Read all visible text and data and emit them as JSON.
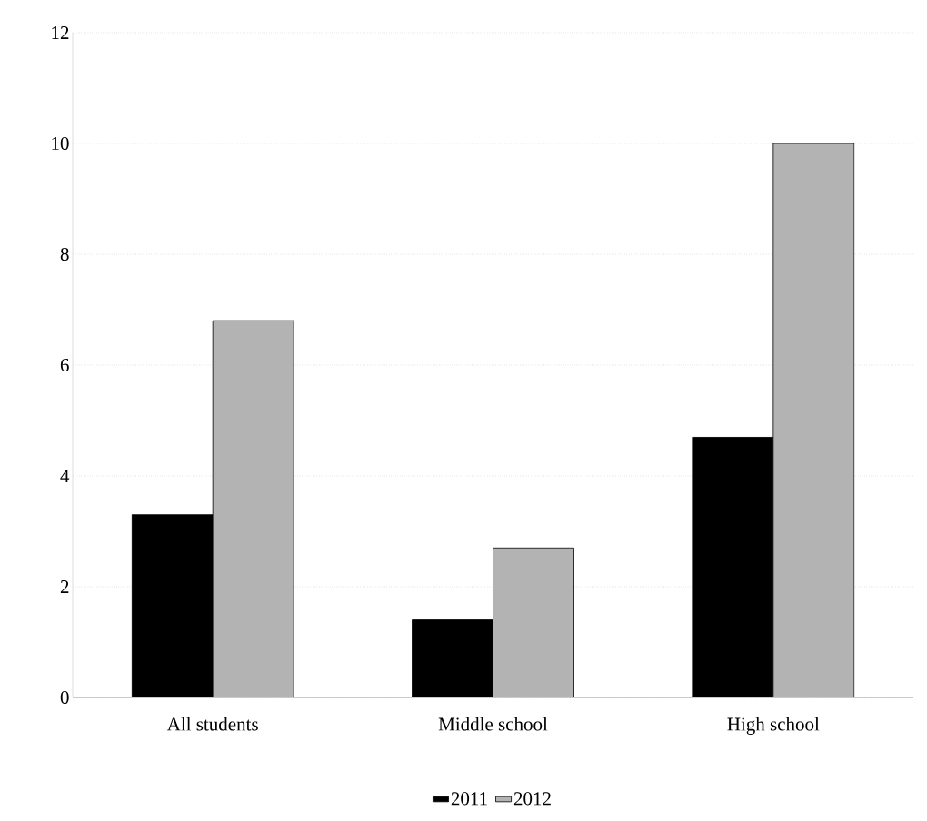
{
  "chart_data": {
    "type": "bar",
    "categories": [
      "All students",
      "Middle school",
      "High school"
    ],
    "series": [
      {
        "name": "2011",
        "color": "#000000",
        "values": [
          3.3,
          1.4,
          4.7
        ]
      },
      {
        "name": "2012",
        "color": "#b3b3b3",
        "values": [
          6.8,
          2.7,
          10.0
        ]
      }
    ],
    "ylim": [
      0,
      12
    ],
    "yticks": [
      0,
      2,
      4,
      6,
      8,
      10,
      12
    ],
    "grid": "y",
    "legend": "bottom"
  }
}
